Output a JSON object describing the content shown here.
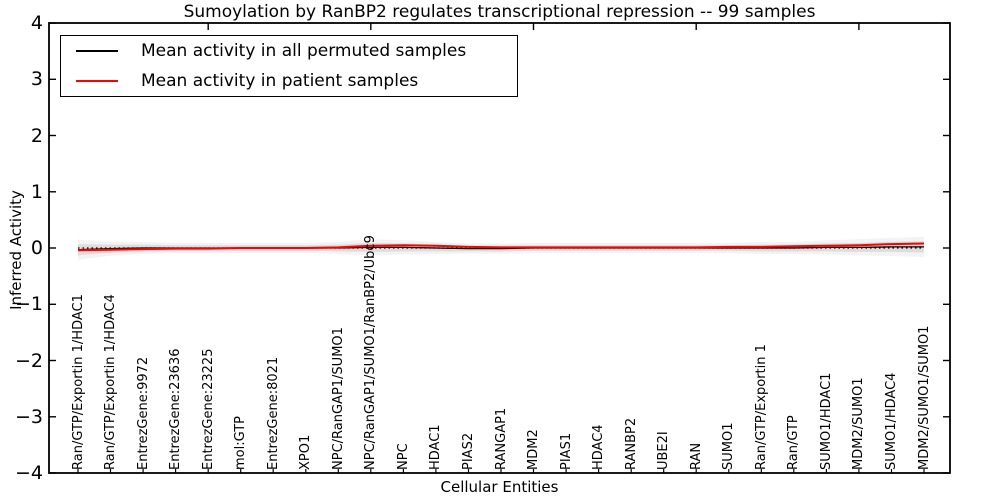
{
  "chart_data": {
    "type": "line",
    "title": "Sumoylation by RanBP2 regulates transcriptional repression -- 99 samples",
    "xlabel": "Cellular Entities",
    "ylabel": "Inferred Activity",
    "ylim": [
      -4,
      4
    ],
    "yticks": [
      4,
      3,
      2,
      1,
      0,
      -1,
      -2,
      -3,
      -4
    ],
    "top_tick_category_positions": [
      5,
      10,
      15,
      20,
      25
    ],
    "grid": false,
    "legend_position": "upper left",
    "background_color": "#ffffff",
    "frame_color": "#000000",
    "categories": [
      "Ran/GTP/Exportin 1/HDAC1",
      "Ran/GTP/Exportin 1/HDAC4",
      "EntrezGene:9972",
      "EntrezGene:23636",
      "EntrezGene:23225",
      "mol:GTP",
      "EntrezGene:8021",
      "XPO1",
      "NPC/RanGAP1/SUMO1",
      "NPC/RanGAP1/SUMO1/RanBP2/Ubc9",
      "NPC",
      "HDAC1",
      "PIAS2",
      "RANGAP1",
      "MDM2",
      "PIAS1",
      "HDAC4",
      "RANBP2",
      "UBE2I",
      "RAN",
      "SUMO1",
      "Ran/GTP/Exportin 1",
      "Ran/GTP",
      "SUMO1/HDAC1",
      "MDM2/SUMO1",
      "SUMO1/HDAC4",
      "MDM2/SUMO1/SUMO1"
    ],
    "series": [
      {
        "name": "Mean activity in all permuted samples",
        "color": "#000000",
        "values": [
          -0.03,
          -0.01,
          0.0,
          0.0,
          0.0,
          0.0,
          0.0,
          0.0,
          0.0,
          0.01,
          0.01,
          0.0,
          -0.01,
          -0.01,
          0.0,
          0.0,
          0.0,
          0.0,
          0.0,
          0.0,
          0.0,
          0.0,
          0.0,
          0.01,
          0.01,
          0.02,
          0.02
        ]
      },
      {
        "name": "Mean activity in patient samples",
        "color": "#ff0000",
        "values": [
          -0.04,
          -0.03,
          -0.02,
          -0.01,
          -0.01,
          0.0,
          0.0,
          0.0,
          0.01,
          0.04,
          0.05,
          0.04,
          0.02,
          0.01,
          0.01,
          0.01,
          0.01,
          0.01,
          0.01,
          0.01,
          0.02,
          0.02,
          0.03,
          0.04,
          0.05,
          0.07,
          0.08
        ]
      }
    ],
    "std_band": {
      "around_series": "Mean activity in all permuted samples",
      "color": "#c8c8c8",
      "half_widths": [
        0.1,
        0.07,
        0.06,
        0.05,
        0.05,
        0.05,
        0.05,
        0.05,
        0.06,
        0.08,
        0.07,
        0.06,
        0.05,
        0.05,
        0.05,
        0.05,
        0.05,
        0.05,
        0.05,
        0.05,
        0.05,
        0.06,
        0.06,
        0.07,
        0.08,
        0.09,
        0.1
      ]
    },
    "zero_line": {
      "y": 0,
      "style": "dotted",
      "color": "#000000"
    }
  }
}
